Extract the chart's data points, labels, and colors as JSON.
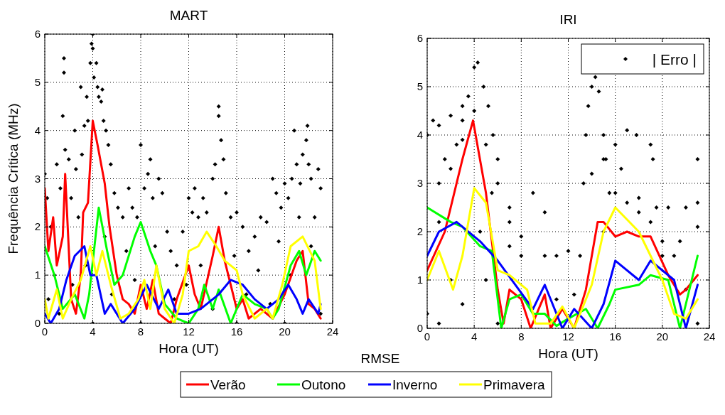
{
  "chart_data": [
    {
      "type": "line",
      "title": "MART",
      "xlabel": "Hora (UT)",
      "ylabel": "Frequência Crítica (MHz)",
      "xlim": [
        0,
        24
      ],
      "ylim": [
        0,
        6
      ],
      "xticks": [
        0,
        4,
        8,
        12,
        16,
        20,
        24
      ],
      "yticks": [
        0,
        1,
        2,
        3,
        4,
        5,
        6
      ],
      "grid": true,
      "legend": "bottom",
      "annotations": [
        "RMSE"
      ],
      "series": [
        {
          "type": "scatter",
          "marker": "diamond",
          "color": "#000000",
          "x": [
            0,
            0.2,
            0.5,
            0.8,
            1,
            1.3,
            1.5,
            1.6,
            1.6,
            1.7,
            2,
            2.2,
            2.5,
            2.6,
            2.8,
            3,
            3.1,
            3.3,
            3.5,
            3.6,
            3.8,
            3.9,
            4,
            4,
            4.1,
            4.3,
            4.4,
            4.5,
            4.7,
            4.9,
            4.8,
            5.1,
            5.3,
            5.5,
            5.8,
            6.1,
            6.5,
            7,
            7.3,
            7.7,
            8,
            8.3,
            8.6,
            8.8,
            9,
            9.5,
            9.8,
            10.2,
            10.5,
            11,
            11.5,
            12,
            12.3,
            12.5,
            12.8,
            13.2,
            13.5,
            14,
            14.2,
            14.5,
            14.5,
            14.7,
            14.9,
            15.1,
            15.5,
            16,
            16.5,
            17,
            17.5,
            18,
            18.5,
            19,
            19.3,
            19.7,
            20,
            20.3,
            20.6,
            20.8,
            21,
            21.3,
            21.5,
            21.8,
            21.9,
            22,
            22.2,
            22.5,
            22.8,
            23,
            0.3,
            1.2,
            2.3,
            3.4,
            5,
            5.6,
            6.8,
            7.5,
            9.2,
            10.8,
            11.8,
            13,
            14,
            15.8,
            16.8,
            17.8,
            18.8,
            19.5,
            20.5,
            21.2,
            22.2,
            23,
            12,
            4,
            8,
            16,
            20
          ],
          "values": [
            3.1,
            2.6,
            2,
            1,
            3.3,
            2.8,
            4.3,
            5.5,
            5.2,
            3.6,
            3.4,
            2.6,
            4,
            3.2,
            2.2,
            4.9,
            3.5,
            4.1,
            4.7,
            4.2,
            5.4,
            5.8,
            6,
            5.7,
            5.1,
            5.4,
            4.9,
            4.7,
            4.6,
            4.2,
            4.85,
            4,
            3.7,
            3.3,
            2.7,
            2.4,
            2.2,
            2.8,
            2.4,
            2.2,
            3.7,
            2.8,
            3.1,
            3.4,
            2.6,
            3,
            2.7,
            1.9,
            1.5,
            1.2,
            1.9,
            2.6,
            2.3,
            2.8,
            2.2,
            2.6,
            2.3,
            3,
            3.3,
            4.3,
            4.5,
            3.8,
            3.4,
            2.7,
            2.2,
            2.3,
            2,
            1.5,
            1.8,
            2.2,
            2.1,
            3,
            2.7,
            2.4,
            2.9,
            2.6,
            3,
            4,
            3.3,
            2.9,
            3.5,
            3.8,
            4.1,
            3.3,
            3,
            2.2,
            3.2,
            2.8,
            0.5,
            0.2,
            0.8,
            1.2,
            1.8,
            0.6,
            1.5,
            0.9,
            1.6,
            0.5,
            0.8,
            1.2,
            0.3,
            1.4,
            0.6,
            1.1,
            0.4,
            1.7,
            1,
            2.2,
            1.6,
            0.2,
            0,
            0,
            0,
            0,
            0
          ]
        },
        {
          "type": "line",
          "name": "Verão",
          "color": "#ff0000",
          "x": [
            0,
            0.3,
            0.7,
            1,
            1.5,
            1.7,
            2.2,
            2.6,
            3,
            3.2,
            3.6,
            4,
            4.4,
            5,
            5.4,
            6,
            6.5,
            7,
            7.5,
            8,
            8.5,
            9,
            9.5,
            10,
            10.5,
            11,
            12,
            12.5,
            13,
            14,
            14.5,
            15,
            16,
            16.5,
            17,
            18,
            19,
            20,
            21,
            21.5,
            22,
            22.5,
            23
          ],
          "values": [
            2.8,
            1.5,
            2.2,
            1.2,
            1.8,
            3.1,
            0.5,
            0.2,
            1,
            2.3,
            2.5,
            4.2,
            3.7,
            2.9,
            2,
            1,
            0.5,
            0.4,
            0.2,
            0.8,
            0.3,
            0.9,
            0.2,
            0.1,
            0,
            0.5,
            1.2,
            0.6,
            0.3,
            1.4,
            2,
            1.3,
            0.3,
            0.5,
            0.1,
            0.3,
            0.1,
            0.6,
            1.3,
            1.5,
            0.4,
            0.3,
            0.1
          ]
        },
        {
          "type": "line",
          "name": "Outono",
          "color": "#00ff00",
          "x": [
            0,
            0.8,
            1.5,
            2.5,
            3.3,
            3.7,
            4.5,
            5.2,
            5.8,
            6.5,
            7.5,
            8,
            8.8,
            9.3,
            10,
            11,
            12,
            12.8,
            13.3,
            14,
            14.5,
            15.5,
            16.5,
            17.5,
            18.5,
            19,
            19.5,
            20.5,
            21.2,
            21.8,
            22.5,
            23
          ],
          "values": [
            1.6,
            1,
            0.3,
            0.6,
            0.1,
            0.6,
            2.4,
            1.5,
            0.8,
            1,
            1.8,
            2.1,
            1.5,
            1.2,
            0.4,
            0.1,
            0,
            0.3,
            0.8,
            0.3,
            0.7,
            0,
            0.6,
            0.4,
            0.3,
            0.1,
            0.3,
            1.2,
            1.5,
            1,
            1.5,
            1.3
          ]
        },
        {
          "type": "line",
          "name": "Inverno",
          "color": "#0000ff",
          "x": [
            0,
            0.5,
            1.2,
            1.8,
            2.5,
            3.3,
            3.8,
            4.3,
            5,
            5.5,
            6.5,
            7.5,
            8.5,
            9.5,
            10.3,
            11,
            12,
            13,
            13.5,
            14.5,
            15.5,
            16.5,
            17.5,
            18.5,
            19.5,
            20.3,
            21,
            21.5,
            22,
            22.8,
            23
          ],
          "values": [
            0.2,
            0,
            0.3,
            0.9,
            1.4,
            1.6,
            1,
            1,
            0.2,
            0.4,
            0,
            0.3,
            0.8,
            0.3,
            0.7,
            0.2,
            0.2,
            0.3,
            0.4,
            0.6,
            0.9,
            0.8,
            0.5,
            0.3,
            0.5,
            0.8,
            0.5,
            0.2,
            0.5,
            0.2,
            0.4
          ]
        },
        {
          "type": "line",
          "name": "Primavera",
          "color": "#ffff00",
          "x": [
            0,
            0.3,
            1,
            1.5,
            2.2,
            3,
            3.8,
            4.3,
            4.8,
            5.5,
            6.3,
            7,
            7.8,
            8.3,
            8.8,
            9.3,
            10,
            10.8,
            11.5,
            12,
            12.8,
            13.5,
            14.3,
            15,
            16,
            16.5,
            17.5,
            18.5,
            19,
            19.8,
            20.5,
            21.5,
            22.5,
            23
          ],
          "values": [
            0.5,
            0.1,
            0.7,
            0.1,
            0.5,
            0.9,
            1.6,
            1,
            1.5,
            0.8,
            0.1,
            0.2,
            0.5,
            0.9,
            0.3,
            1.2,
            0.3,
            0,
            0.6,
            1.5,
            1.6,
            1.9,
            1.6,
            1.3,
            1.1,
            0.6,
            0.1,
            0.3,
            0.1,
            0.8,
            1.6,
            1.8,
            1.3,
            0.3
          ]
        }
      ]
    },
    {
      "type": "line",
      "title": "IRI",
      "xlabel": "Hora (UT)",
      "xlim": [
        0,
        24
      ],
      "ylim": [
        0,
        6
      ],
      "xticks": [
        0,
        4,
        8,
        12,
        16,
        20,
        24
      ],
      "yticks": [
        0,
        1,
        2,
        3,
        4,
        5,
        6
      ],
      "grid": true,
      "legend": "top right",
      "series": [
        {
          "type": "scatter",
          "name": "| Erro |",
          "marker": "diamond",
          "color": "#000000",
          "x": [
            0,
            0.5,
            1,
            2,
            3,
            4,
            5,
            6,
            7,
            8,
            3,
            3.5,
            4,
            4.3,
            4.8,
            5.2,
            5.6,
            6,
            13.3,
            13.5,
            13.7,
            14,
            14.3,
            14.6,
            15,
            15.2,
            15.5,
            14,
            15,
            16,
            17,
            17.8,
            19,
            19.2,
            19.5,
            20,
            22,
            23,
            23,
            23,
            9,
            10,
            11,
            12,
            8,
            7,
            1,
            1.5,
            2.5,
            1,
            2,
            0,
            1,
            3,
            5,
            6,
            7,
            10,
            11,
            12.5,
            13,
            15,
            16,
            17,
            18,
            19,
            20,
            21,
            22,
            23,
            16.5,
            18,
            20.5,
            21.5,
            4.5,
            5.5,
            2,
            3
          ],
          "values": [
            4,
            4.3,
            4.2,
            4.4,
            4.3,
            4.5,
            3.8,
            3,
            2.2,
            1.5,
            4.6,
            4.8,
            5.4,
            5.5,
            5,
            4.6,
            4,
            3.5,
            3,
            4,
            4.6,
            5,
            5.2,
            4.9,
            4,
            3.5,
            2.8,
            3.2,
            3.5,
            3.8,
            4.1,
            4,
            3.8,
            3.5,
            2.5,
            1.5,
            2.5,
            3.5,
            2.6,
            2.1,
            2.8,
            2.4,
            1.5,
            1.6,
            1.9,
            2.5,
            3,
            3.5,
            3.8,
            2.2,
            1,
            0.3,
            0.1,
            0.5,
            1,
            0.1,
            1.7,
            1.5,
            0.6,
            0.7,
            1.5,
            2,
            2.8,
            2.6,
            2.4,
            2.2,
            1.8,
            1.5,
            0.8,
            0.1,
            3.3,
            2.7,
            2.5,
            1.8,
            2,
            2.8,
            3.3,
            3.9
          ]
        },
        {
          "type": "line",
          "color": "#ff0000",
          "x": [
            0,
            1.5,
            3,
            3.9,
            5,
            6,
            6.5,
            7,
            8,
            8.8,
            10,
            10.5,
            11.5,
            12.5,
            13.5,
            14.5,
            15,
            16,
            17,
            18,
            19,
            20.5,
            21.5,
            22,
            23
          ],
          "values": [
            1.2,
            2,
            3.5,
            4.3,
            2.8,
            0.8,
            0.1,
            0.8,
            0.6,
            0,
            0.7,
            0,
            0.4,
            0,
            0.8,
            2.2,
            2.2,
            1.9,
            2,
            1.9,
            1.9,
            1.1,
            0.7,
            0.8,
            1.1
          ]
        },
        {
          "type": "line",
          "color": "#00ff00",
          "x": [
            0,
            2,
            3,
            4.5,
            5.5,
            6.3,
            7,
            8,
            9,
            10,
            11,
            12,
            13.5,
            14.5,
            15.5,
            16,
            18,
            19,
            20.5,
            21.5,
            22,
            23
          ],
          "values": [
            2.5,
            2.2,
            2.1,
            1.7,
            1.6,
            0,
            0.6,
            0.7,
            0.3,
            0.3,
            0.05,
            0.2,
            0.4,
            0,
            0.5,
            0.8,
            0.9,
            1.1,
            1,
            0,
            0.5,
            1.5
          ]
        },
        {
          "type": "line",
          "color": "#0000ff",
          "x": [
            0,
            1,
            2.5,
            4.5,
            6,
            7.5,
            9,
            10,
            11.5,
            12.5,
            14,
            15,
            16,
            18,
            19,
            21,
            22,
            23
          ],
          "values": [
            1.5,
            2,
            2.2,
            1.8,
            1.4,
            0.9,
            0.4,
            0.9,
            0,
            0.4,
            0,
            0.5,
            1.4,
            1,
            1.4,
            1,
            0,
            0.9
          ]
        },
        {
          "type": "line",
          "color": "#ffff00",
          "x": [
            0,
            1,
            2.2,
            3,
            4,
            5,
            6,
            7,
            8.5,
            9.2,
            10.5,
            11.5,
            12.5,
            13.5,
            14,
            15,
            16,
            18,
            20,
            21,
            22,
            23
          ],
          "values": [
            1,
            1.6,
            0.8,
            1.5,
            2.9,
            2.6,
            1.2,
            1.1,
            0.8,
            0.1,
            0.1,
            0.45,
            0,
            0.6,
            0.9,
            2,
            2.5,
            2,
            1,
            0.3,
            0.2,
            0.6
          ]
        }
      ]
    }
  ]
}
